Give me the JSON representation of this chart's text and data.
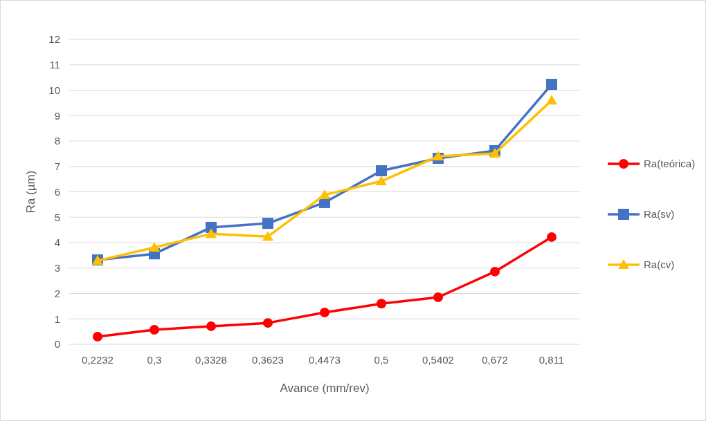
{
  "chart_data": {
    "type": "line",
    "xlabel": "Avance (mm/rev)",
    "ylabel": "Ra (µm)",
    "categories": [
      "0,2232",
      "0,3",
      "0,3328",
      "0,3623",
      "0,4473",
      "0,5",
      "0,5402",
      "0,672",
      "0,811"
    ],
    "series": [
      {
        "name": "Ra(teórica)",
        "color": "#ff0000",
        "marker": "circle",
        "values": [
          0.3,
          0.57,
          0.71,
          0.84,
          1.25,
          1.6,
          1.85,
          2.86,
          4.22
        ]
      },
      {
        "name": "Ra(sv)",
        "color": "#4472c4",
        "marker": "square",
        "values": [
          3.32,
          3.56,
          4.6,
          4.76,
          5.58,
          6.83,
          7.32,
          7.62,
          10.23
        ]
      },
      {
        "name": "Ra(cv)",
        "color": "#ffc000",
        "marker": "triangle",
        "values": [
          3.29,
          3.81,
          4.35,
          4.24,
          5.88,
          6.42,
          7.4,
          7.51,
          9.6
        ]
      }
    ],
    "ylim": [
      0,
      12
    ],
    "yticks": [
      0,
      1,
      2,
      3,
      4,
      5,
      6,
      7,
      8,
      9,
      10,
      11,
      12
    ],
    "grid": "y",
    "legend": "right"
  }
}
